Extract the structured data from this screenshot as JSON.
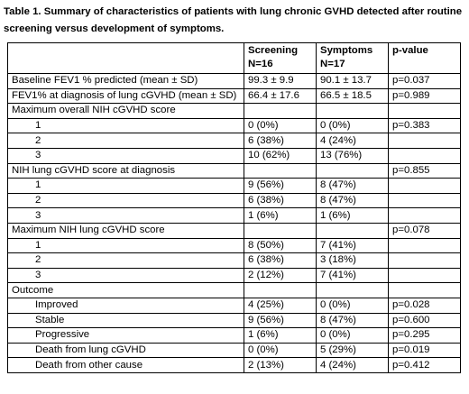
{
  "caption": "Table 1. Summary of characteristics of patients with lung chronic GVHD detected after routine screening versus development of symptoms.",
  "header": {
    "screening_label": "Screening",
    "screening_n": "N=16",
    "symptoms_label": "Symptoms",
    "symptoms_n": "N=17",
    "pvalue_label": "p-value"
  },
  "rows": [
    {
      "label": "Baseline FEV1 % predicted (mean ± SD)",
      "screening": "99.3 ± 9.9",
      "symptoms": "90.1 ± 13.7",
      "p": "p=0.037",
      "sub": false
    },
    {
      "label": "FEV1% at diagnosis of lung cGVHD (mean ± SD)",
      "screening": "66.4 ± 17.6",
      "symptoms": "66.5 ± 18.5",
      "p": "p=0.989",
      "sub": false
    },
    {
      "label": "Maximum overall NIH cGVHD score",
      "screening": "",
      "symptoms": "",
      "p": "",
      "sub": false
    },
    {
      "label": "1",
      "screening": "0 (0%)",
      "symptoms": "0 (0%)",
      "p": "p=0.383",
      "sub": true
    },
    {
      "label": "2",
      "screening": "6 (38%)",
      "symptoms": "4 (24%)",
      "p": "",
      "sub": true
    },
    {
      "label": "3",
      "screening": "10 (62%)",
      "symptoms": "13 (76%)",
      "p": "",
      "sub": true
    },
    {
      "label": "NIH lung cGVHD score at diagnosis",
      "screening": "",
      "symptoms": "",
      "p": "p=0.855",
      "sub": false
    },
    {
      "label": "1",
      "screening": "9 (56%)",
      "symptoms": "8 (47%)",
      "p": "",
      "sub": true
    },
    {
      "label": "2",
      "screening": "6 (38%)",
      "symptoms": "8 (47%)",
      "p": "",
      "sub": true
    },
    {
      "label": "3",
      "screening": "1 (6%)",
      "symptoms": "1 (6%)",
      "p": "",
      "sub": true
    },
    {
      "label": "Maximum NIH lung cGVHD score",
      "screening": "",
      "symptoms": "",
      "p": "p=0.078",
      "sub": false
    },
    {
      "label": "1",
      "screening": "8 (50%)",
      "symptoms": "7 (41%)",
      "p": "",
      "sub": true
    },
    {
      "label": "2",
      "screening": "6 (38%)",
      "symptoms": "3 (18%)",
      "p": "",
      "sub": true
    },
    {
      "label": "3",
      "screening": "2 (12%)",
      "symptoms": "7 (41%)",
      "p": "",
      "sub": true
    },
    {
      "label": "Outcome",
      "screening": "",
      "symptoms": "",
      "p": "",
      "sub": false
    },
    {
      "label": "Improved",
      "screening": "4 (25%)",
      "symptoms": "0 (0%)",
      "p": "p=0.028",
      "sub": true
    },
    {
      "label": "Stable",
      "screening": "9 (56%)",
      "symptoms": "8 (47%)",
      "p": "p=0.600",
      "sub": true
    },
    {
      "label": "Progressive",
      "screening": "1 (6%)",
      "symptoms": "0 (0%)",
      "p": "p=0.295",
      "sub": true
    },
    {
      "label": "Death from lung cGVHD",
      "screening": "0 (0%)",
      "symptoms": "5 (29%)",
      "p": "p=0.019",
      "sub": true
    },
    {
      "label": "Death from other cause",
      "screening": "2 (13%)",
      "symptoms": "4 (24%)",
      "p": "p=0.412",
      "sub": true
    }
  ]
}
